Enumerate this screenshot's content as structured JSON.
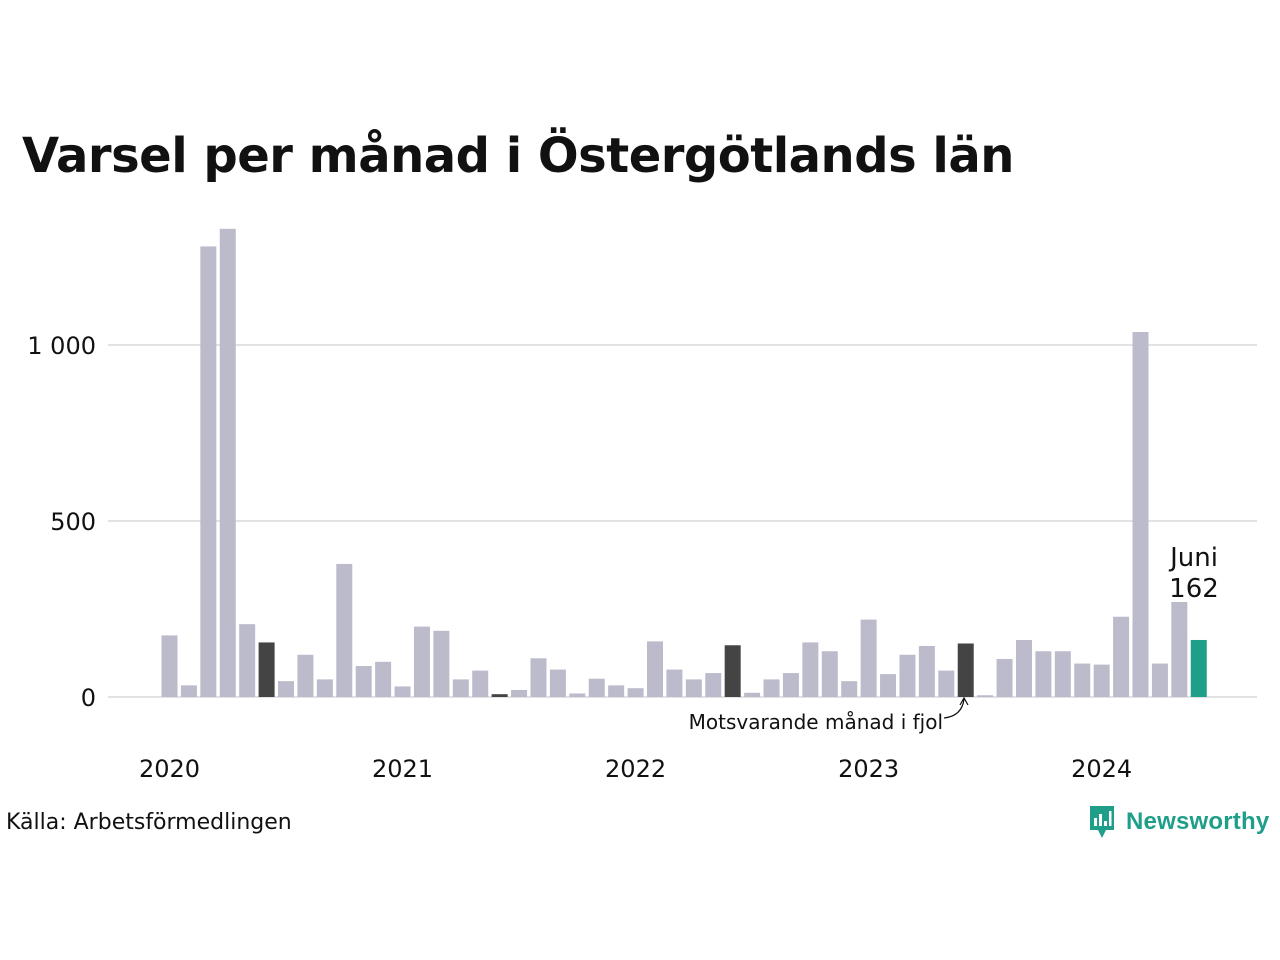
{
  "title": "Varsel per månad i Östergötlands län",
  "source": "Källa: Arbetsförmedlingen",
  "brand": {
    "name": "Newsworthy",
    "logo_icon": "bar-chart-badge-icon",
    "color": "#1f9e8a"
  },
  "chart_data": {
    "type": "bar",
    "start_month": "2020-01",
    "end_month": "2024-06",
    "values": [
      175,
      33,
      1280,
      1330,
      207,
      155,
      45,
      120,
      50,
      378,
      88,
      100,
      30,
      200,
      188,
      50,
      75,
      8,
      20,
      110,
      78,
      10,
      52,
      33,
      25,
      158,
      78,
      50,
      68,
      147,
      12,
      50,
      68,
      155,
      130,
      45,
      220,
      65,
      120,
      145,
      75,
      152,
      5,
      108,
      162,
      130,
      130,
      95,
      92,
      228,
      1037,
      95,
      270,
      162
    ],
    "highlighted_same_month_prior_years": [
      "2020-06",
      "2021-06",
      "2022-06",
      "2023-06"
    ],
    "current_month": "2024-06",
    "x_tick_labels": [
      "2020",
      "2021",
      "2022",
      "2023",
      "2024"
    ],
    "y_ticks": [
      0,
      500,
      1000
    ],
    "y_tick_labels": [
      "0",
      "500",
      "1 000"
    ],
    "ylim": [
      0,
      1340
    ],
    "grid": "horizontal",
    "colors": {
      "default": "#bcbbcb",
      "same_month_prior_years": "#444444",
      "current": "#1f9e8a",
      "grid": "#e2e2e2"
    },
    "annotations": {
      "current_label_month": "Juni",
      "current_label_value": "162",
      "prior_note": "Motsvarande månad i fjol"
    }
  }
}
